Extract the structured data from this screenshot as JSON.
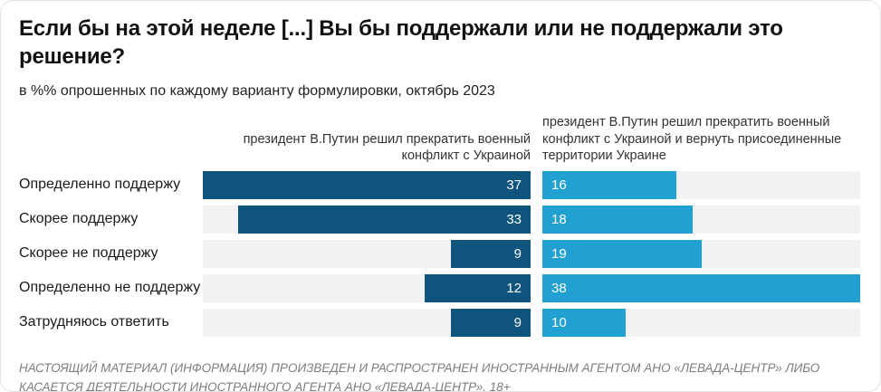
{
  "title": "Если бы на этой неделе [...] Вы бы поддержали или не поддержали это решение?",
  "subtitle": "в %% опрошенных по каждому варианту формулировки, октябрь 2023",
  "footer": "НАСТОЯЩИЙ МАТЕРИАЛ (ИНФОРМАЦИЯ) ПРОИЗВЕДЕН И РАСПРОСТРАНЕН ИНОСТРАННЫМ АГЕНТОМ АНО «ЛЕВАДА-ЦЕНТР» ЛИБО КАСАЕТСЯ ДЕЯТЕЛЬНОСТИ ИНОСТРАННОГО АГЕНТА АНО «ЛЕВАДА-ЦЕНТР». 18+",
  "colors": {
    "bar_dark_blue": "#0e547d",
    "bar_light_blue": "#21a0d2",
    "track_gray": "#f2f2f2",
    "text_black": "#111111",
    "footer_gray": "#7d7d7d"
  },
  "chart_data": {
    "type": "bar",
    "orientation": "horizontal",
    "grid": false,
    "legend_position": "column-headers-top",
    "categories": [
      "Определенно поддержу",
      "Скорее поддержу",
      "Скорее не поддержу",
      "Определенно не поддержу",
      "Затрудняюсь ответить"
    ],
    "series": [
      {
        "name": "президент В.Путин решил прекратить военный конфликт с Украиной",
        "values": [
          37,
          33,
          9,
          12,
          9
        ],
        "color": "#0e547d",
        "bar_anchor": "right",
        "value_label_position": "inside-right",
        "axis_max": 37
      },
      {
        "name": "президент В.Путин решил прекратить военный конфликт с Украиной и вернуть присоединенные территории Украине",
        "values": [
          16,
          18,
          19,
          38,
          10
        ],
        "color": "#21a0d2",
        "bar_anchor": "left",
        "value_label_position": "inside-left",
        "axis_max": 38
      }
    ]
  }
}
